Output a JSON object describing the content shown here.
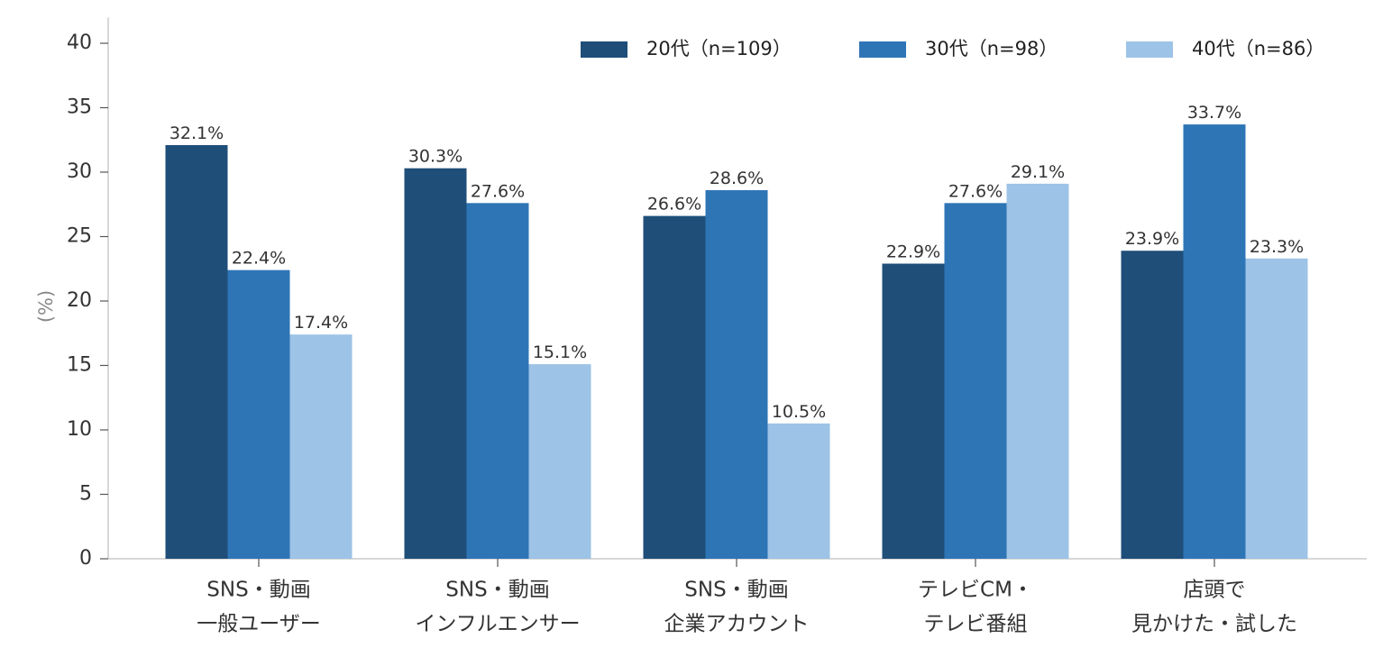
{
  "chart_data": {
    "type": "bar",
    "title": "",
    "xlabel": "",
    "ylabel": "(%)",
    "ylim": [
      0,
      42
    ],
    "yticks": [
      0,
      5,
      10,
      15,
      20,
      25,
      30,
      35,
      40
    ],
    "grid": false,
    "legend_position": "top-right",
    "categories": [
      [
        "SNS・動画",
        "一般ユーザー"
      ],
      [
        "SNS・動画",
        "インフルエンサー"
      ],
      [
        "SNS・動画",
        "企業アカウント"
      ],
      [
        "テレビCM・",
        "テレビ番組"
      ],
      [
        "店頭で",
        "見かけた・試した"
      ]
    ],
    "series": [
      {
        "name": "20代（n=109）",
        "color": "#1f4e79",
        "values": [
          32.1,
          30.3,
          26.6,
          22.9,
          23.9
        ],
        "labels": [
          "32.1%",
          "30.3%",
          "26.6%",
          "22.9%",
          "23.9%"
        ]
      },
      {
        "name": "30代（n=98）",
        "color": "#2e75b6",
        "values": [
          22.4,
          27.6,
          28.6,
          27.6,
          33.7
        ],
        "labels": [
          "22.4%",
          "27.6%",
          "28.6%",
          "27.6%",
          "33.7%"
        ]
      },
      {
        "name": "40代（n=86）",
        "color": "#9dc3e6",
        "values": [
          17.4,
          15.1,
          10.5,
          29.1,
          23.3
        ],
        "labels": [
          "17.4%",
          "15.1%",
          "10.5%",
          "29.1%",
          "23.3%"
        ]
      }
    ]
  }
}
